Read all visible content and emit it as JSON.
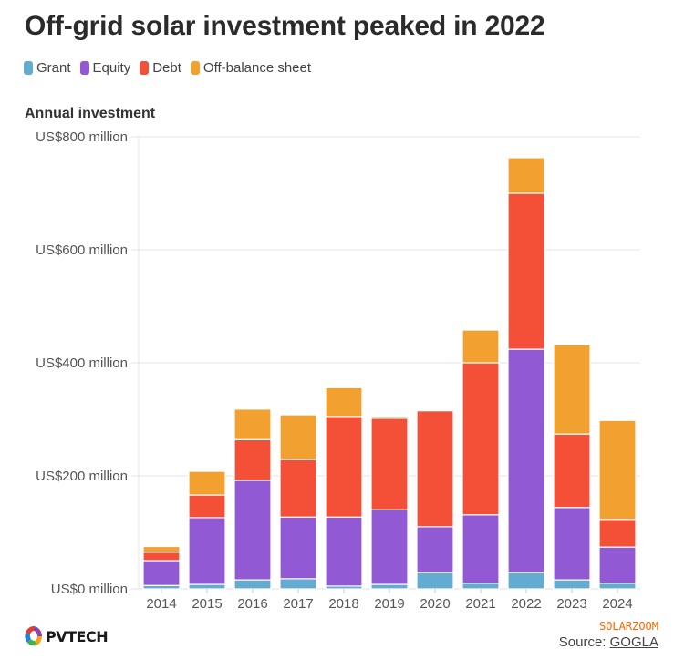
{
  "header": {
    "title": "Off-grid solar investment peaked in 2022",
    "subtitle": "Annual investment"
  },
  "legend": [
    {
      "label": "Grant",
      "color": "#64abd1"
    },
    {
      "label": "Equity",
      "color": "#9259d4"
    },
    {
      "label": "Debt",
      "color": "#f45038"
    },
    {
      "label": "Off-balance sheet",
      "color": "#f2a130"
    }
  ],
  "footer": {
    "logo_text": "PVTECH",
    "watermark": "SOLARZOOM",
    "source_prefix": "Source: ",
    "source_link": "GOGLA"
  },
  "chart_data": {
    "type": "bar",
    "stacked": true,
    "title": "Off-grid solar investment peaked in 2022",
    "ylabel": "Annual investment",
    "xlabel": "",
    "ylim": [
      0,
      800
    ],
    "yticks": [
      0,
      200,
      400,
      600,
      800
    ],
    "ytick_labels": [
      "US$0 million",
      "US$200 million",
      "US$400 million",
      "US$600 million",
      "US$800 million"
    ],
    "grid": true,
    "legend_position": "top-left",
    "categories": [
      "2014",
      "2015",
      "2016",
      "2017",
      "2018",
      "2019",
      "2020",
      "2021",
      "2022",
      "2023",
      "2024"
    ],
    "series": [
      {
        "name": "Grant",
        "color": "#64abd1",
        "values": [
          6,
          8,
          16,
          18,
          5,
          8,
          29,
          10,
          29,
          16,
          10
        ]
      },
      {
        "name": "Equity",
        "color": "#9259d4",
        "values": [
          44,
          118,
          176,
          109,
          122,
          132,
          81,
          121,
          395,
          128,
          64
        ]
      },
      {
        "name": "Debt",
        "color": "#f45038",
        "values": [
          15,
          40,
          72,
          102,
          178,
          162,
          205,
          269,
          276,
          130,
          49
        ]
      },
      {
        "name": "Off-balance sheet",
        "color": "#f2a130",
        "values": [
          10,
          42,
          54,
          79,
          51,
          3,
          0,
          58,
          63,
          158,
          175
        ]
      }
    ]
  }
}
